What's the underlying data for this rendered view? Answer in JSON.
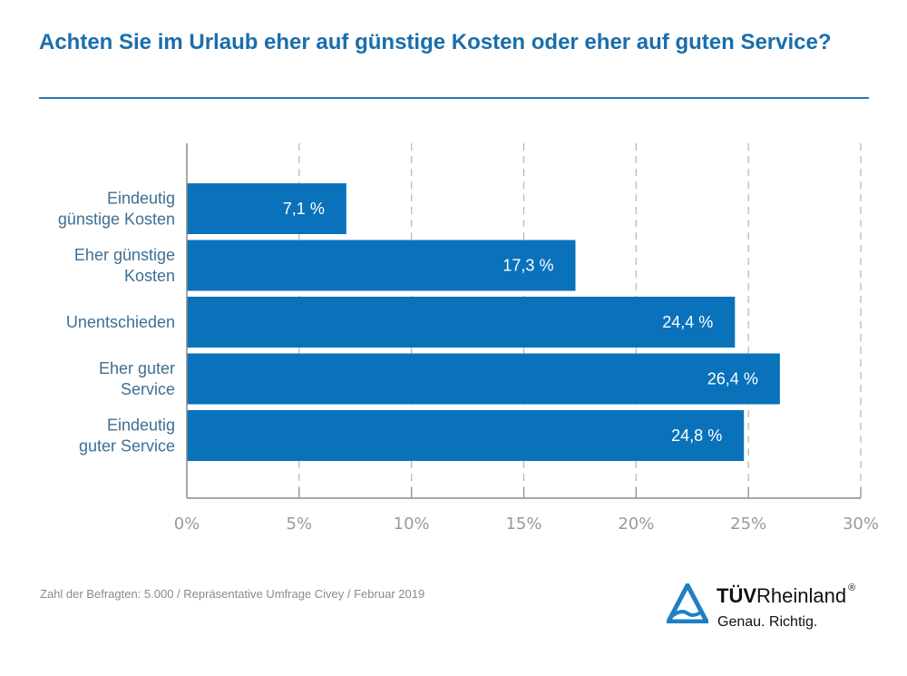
{
  "header": {
    "title": "Achten Sie im Urlaub eher auf günstige Kosten oder eher auf guten Service?"
  },
  "chart_data": {
    "type": "bar",
    "orientation": "horizontal",
    "title": "Achten Sie im Urlaub eher auf günstige Kosten oder eher auf guten Service?",
    "categories": [
      [
        "Eindeutig",
        "günstige Kosten"
      ],
      [
        "Eher günstige",
        "Kosten"
      ],
      [
        "Unentschieden"
      ],
      [
        "Eher guter",
        "Service"
      ],
      [
        "Eindeutig",
        "guter Service"
      ]
    ],
    "values": [
      7.1,
      17.3,
      24.4,
      26.4,
      24.8
    ],
    "value_labels": [
      "7,1 %",
      "17,3 %",
      "24,4 %",
      "26,4 %",
      "24,8 %"
    ],
    "xlabel": "",
    "ylabel": "",
    "xlim": [
      0,
      30
    ],
    "ticks": [
      0,
      5,
      10,
      15,
      20,
      25,
      30
    ],
    "tick_labels": [
      "0%",
      "5%",
      "10%",
      "15%",
      "20%",
      "25%",
      "30%"
    ],
    "grid": "vertical-dashed",
    "bar_color": "#0a72bb",
    "legend": "none"
  },
  "footer": {
    "source_note": "Zahl der Befragten: 5.000 / Repräsentative Umfrage Civey / Februar 2019",
    "logo_brand_bold": "TÜV",
    "logo_brand_regular": "Rheinland",
    "logo_registered": "®",
    "logo_tagline": "Genau. Richtig."
  },
  "colors": {
    "title": "#1a6eab",
    "bar": "#0a72bb",
    "category_text": "#3f6f93",
    "tick_text": "#9a9a9a",
    "logo_triangle": "#1f7fc4"
  }
}
